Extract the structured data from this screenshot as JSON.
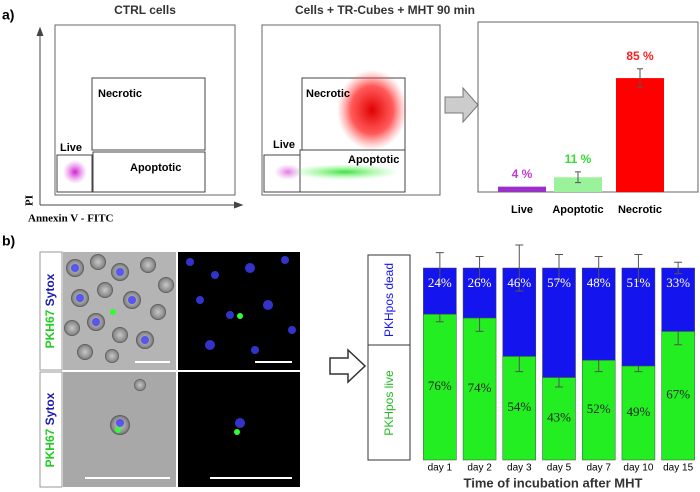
{
  "panel_a": {
    "label": "a)",
    "y_axis": "PI",
    "x_axis": "Annexin V - FITC",
    "plots": [
      {
        "title": "CTRL cells",
        "gates": [
          "Necrotic",
          "Live",
          "Apoptotic"
        ]
      },
      {
        "title": "Cells + TR-Cubes + MHT 90 min",
        "gates": [
          "Necrotic",
          "Live",
          "Apoptotic"
        ]
      }
    ]
  },
  "panel_b": {
    "label": "b)",
    "image_labels": [
      [
        "PKH67",
        "Sytox"
      ],
      [
        "PKH67",
        "Sytox"
      ]
    ]
  },
  "chart_data": [
    {
      "type": "bar",
      "categories": [
        "Live",
        "Apoptotic",
        "Necrotic"
      ],
      "values": [
        4,
        11,
        85
      ],
      "value_labels": [
        "4 %",
        "11 %",
        "85 %"
      ],
      "errors": [
        null,
        4,
        7
      ],
      "colors": [
        "#9b30c8",
        "#9af29a",
        "#ff0000"
      ],
      "label_colors": [
        "#c03cd0",
        "#33dd33",
        "#ff2020"
      ],
      "ylim": [
        0,
        100
      ]
    },
    {
      "type": "stacked_bar",
      "xlabel": "Time of incubation after MHT",
      "categories": [
        "day 1",
        "day 2",
        "day 3",
        "day 5",
        "day 7",
        "day 10",
        "day 15"
      ],
      "series": [
        {
          "name": "PKHpos live",
          "color": "#22ee22",
          "values": [
            76,
            74,
            54,
            43,
            52,
            49,
            67
          ],
          "value_labels": [
            "76%",
            "74%",
            "54%",
            "43%",
            "52%",
            "49%",
            "67%"
          ],
          "errors": [
            4,
            7,
            8,
            5,
            6,
            3,
            7
          ]
        },
        {
          "name": "PKHpos dead",
          "color": "#1414ee",
          "values": [
            24,
            26,
            46,
            57,
            48,
            51,
            33
          ],
          "value_labels": [
            "24%",
            "26%",
            "46%",
            "57%",
            "48%",
            "51%",
            "33%"
          ],
          "errors": [
            8,
            6,
            12,
            7,
            6,
            7,
            3
          ]
        }
      ],
      "ylim": [
        0,
        100
      ]
    }
  ]
}
